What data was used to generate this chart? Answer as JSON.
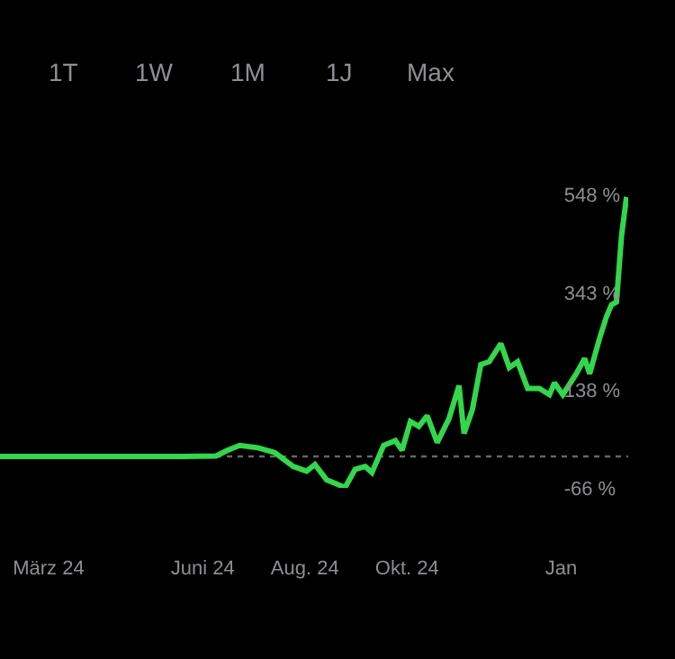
{
  "chart_data": {
    "type": "line",
    "annotations": [
      "1T",
      "1W",
      "1M",
      "1J",
      "Max"
    ],
    "x": [
      "2024-02-01",
      "2024-03-15",
      "2024-04-20",
      "2024-05-20",
      "2024-06-09",
      "2024-06-16",
      "2024-06-23",
      "2024-07-04",
      "2024-07-14",
      "2024-07-25",
      "2024-08-02",
      "2024-08-07",
      "2024-08-14",
      "2024-08-25",
      "2024-08-31",
      "2024-09-06",
      "2024-09-10",
      "2024-09-17",
      "2024-09-24",
      "2024-09-28",
      "2024-10-03",
      "2024-10-08",
      "2024-10-13",
      "2024-10-19",
      "2024-10-26",
      "2024-11-01",
      "2024-11-04",
      "2024-11-09",
      "2024-11-14",
      "2024-11-19",
      "2024-11-26",
      "2024-12-01",
      "2024-12-06",
      "2024-12-12",
      "2024-12-19",
      "2024-12-25",
      "2024-12-28",
      "2025-01-02",
      "2025-01-10",
      "2025-01-15",
      "2025-01-18",
      "2025-01-24",
      "2025-01-28",
      "2025-01-31",
      "2025-02-03",
      "2025-02-06",
      "2025-02-09"
    ],
    "series": [
      {
        "color": "#32d74b",
        "values": [
          0,
          0,
          0,
          0,
          1,
          13,
          23,
          18,
          8,
          -21,
          -31,
          -17,
          -49,
          -65,
          -27,
          -21,
          -34,
          23,
          33,
          13,
          73,
          63,
          85,
          29,
          79,
          148,
          48,
          98,
          192,
          198,
          236,
          186,
          198,
          142,
          142,
          129,
          154,
          129,
          173,
          205,
          173,
          248,
          292,
          317,
          323,
          461,
          543
        ]
      }
    ],
    "xlim": [
      "2024-02-01",
      "2025-02-10"
    ],
    "xticks": [
      {
        "value": "2024-03-01",
        "label": "März 24"
      },
      {
        "value": "2024-06-01",
        "label": "Juni 24"
      },
      {
        "value": "2024-08-01",
        "label": "Aug. 24"
      },
      {
        "value": "2024-10-01",
        "label": "Okt. 24"
      },
      {
        "value": "2025-01-01",
        "label": "Jan"
      }
    ],
    "ylim": [
      -66,
      548
    ],
    "yticks": [
      {
        "value": 548,
        "label": "548 %"
      },
      {
        "value": 343,
        "label": "343 %"
      },
      {
        "value": 138,
        "label": "138 %"
      },
      {
        "value": -66,
        "label": "-66 %"
      }
    ],
    "ref_lines": [
      {
        "axis": "y",
        "value": 0,
        "color": "#666666",
        "line_style": "dotted"
      }
    ],
    "grid": false,
    "legend": false
  }
}
